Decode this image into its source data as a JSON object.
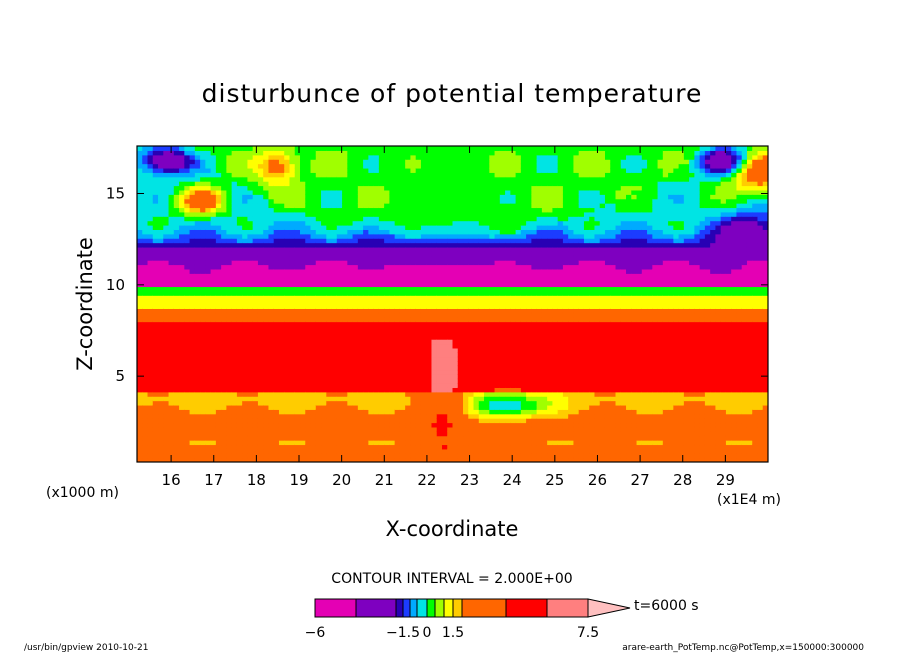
{
  "chart_data": {
    "type": "heatmap",
    "title": "disturbunce of potential temperature",
    "xlabel": "X-coordinate",
    "ylabel": "Z-coordinate",
    "x_unit_left": "(x1000 m)",
    "x_unit_right": "(x1E4 m)",
    "xlim": [
      15.2,
      30.0
    ],
    "ylim": [
      0.3,
      17.6
    ],
    "x_ticks": [
      {
        "value": 16,
        "label": "16"
      },
      {
        "value": 17,
        "label": "17"
      },
      {
        "value": 18,
        "label": "18"
      },
      {
        "value": 19,
        "label": "19"
      },
      {
        "value": 20,
        "label": "20"
      },
      {
        "value": 21,
        "label": "21"
      },
      {
        "value": 22,
        "label": "22"
      },
      {
        "value": 23,
        "label": "23"
      },
      {
        "value": 24,
        "label": "24"
      },
      {
        "value": 25,
        "label": "25"
      },
      {
        "value": 26,
        "label": "26"
      },
      {
        "value": 27,
        "label": "27"
      },
      {
        "value": 28,
        "label": "28"
      },
      {
        "value": 29,
        "label": "29"
      }
    ],
    "y_ticks": [
      {
        "value": 5,
        "label": "5"
      },
      {
        "value": 10,
        "label": "10"
      },
      {
        "value": 15,
        "label": "15"
      }
    ],
    "contour_interval_text": "CONTOUR INTERVAL = 2.000E+00",
    "time_label": "t=6000 s",
    "colorbar": {
      "levels": [
        -6,
        -4,
        -2,
        -1.5,
        -1,
        -0.5,
        0,
        0.5,
        1,
        1.5,
        2,
        4,
        6,
        7.5
      ],
      "colors": [
        "#e400b4",
        "#7e00c0",
        "#2800b4",
        "#1c3cff",
        "#00aaff",
        "#00e4e4",
        "#00ff00",
        "#a0ff00",
        "#ffff00",
        "#ffcc00",
        "#ff6600",
        "#ff0000",
        "#ff7f7f",
        "#ffc0c0"
      ],
      "tick_labels": [
        {
          "value": -6,
          "label": "−6"
        },
        {
          "value": -1.5,
          "label": "−1.5"
        },
        {
          "value": 0,
          "label": "0"
        },
        {
          "value": 1.5,
          "label": "1.5"
        },
        {
          "value": 7.5,
          "label": "7.5"
        }
      ]
    },
    "footer_left": "/usr/bin/gpview   2010-10-21",
    "footer_right": "arare-earth_PotTemp.nc@PotTemp,x=150000:300000"
  }
}
